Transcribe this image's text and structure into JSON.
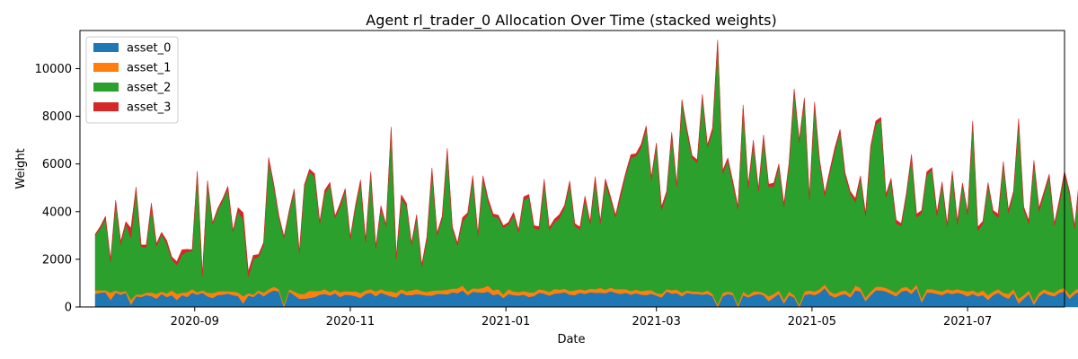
{
  "chart_data": {
    "type": "area",
    "stacked": true,
    "title": "Agent rl_trader_0 Allocation Over Time (stacked weights)",
    "xlabel": "Date",
    "ylabel": "Weight",
    "xlim": [
      "2020-07-18",
      "2021-08-08"
    ],
    "ylim": [
      0,
      11600
    ],
    "grid": false,
    "legend_position": "top-left",
    "x_ticks": [
      "2020-09",
      "2020-11",
      "2021-01",
      "2021-03",
      "2021-05",
      "2021-07"
    ],
    "x_tick_dates": [
      "2020-09-01",
      "2020-11-01",
      "2021-01-01",
      "2021-03-01",
      "2021-05-01",
      "2021-07-01"
    ],
    "y_ticks": [
      0,
      2000,
      4000,
      6000,
      8000,
      10000
    ],
    "x_start": "2020-07-24",
    "x_step_days": 2,
    "series": [
      {
        "name": "asset_0",
        "color": "#1f77b4",
        "values": [
          550,
          600,
          620,
          300,
          600,
          520,
          600,
          100,
          450,
          420,
          500,
          460,
          350,
          550,
          420,
          500,
          300,
          500,
          420,
          600,
          520,
          600,
          450,
          380,
          500,
          520,
          560,
          500,
          460,
          150,
          480,
          420,
          600,
          450,
          600,
          700,
          650,
          0,
          650,
          500,
          350,
          350,
          380,
          420,
          520,
          550,
          480,
          580,
          420,
          520,
          500,
          460,
          380,
          550,
          600,
          450,
          600,
          520,
          450,
          400,
          600,
          500,
          500,
          550,
          520,
          480,
          480,
          550,
          550,
          530,
          620,
          580,
          700,
          500,
          640,
          620,
          600,
          650,
          500,
          550,
          380,
          550,
          500,
          480,
          520,
          420,
          460,
          600,
          560,
          480,
          560,
          580,
          620,
          520,
          500,
          600,
          550,
          620,
          600,
          600,
          580,
          660,
          600,
          550,
          600,
          520,
          580,
          520,
          500,
          560,
          480,
          400,
          650,
          560,
          580,
          450,
          600,
          550,
          550,
          520,
          550,
          450,
          0,
          450,
          550,
          500,
          0,
          500,
          400,
          500,
          550,
          500,
          250,
          400,
          550,
          150,
          500,
          400,
          0,
          500,
          550,
          500,
          600,
          800,
          500,
          400,
          500,
          550,
          400,
          700,
          650,
          250,
          500,
          700,
          700,
          650,
          550,
          450,
          650,
          700,
          550,
          800,
          200,
          600,
          600,
          550,
          500,
          600,
          550,
          600,
          550,
          450,
          550,
          450,
          500,
          300,
          500,
          600,
          450,
          350,
          600,
          150,
          350,
          550,
          100,
          450,
          600,
          500,
          450,
          600,
          650,
          350,
          550,
          650,
          600,
          500,
          550,
          500,
          550,
          450,
          500,
          650,
          700,
          450,
          500,
          600,
          550,
          600,
          550,
          600
        ]
      },
      {
        "name": "asset_1",
        "color": "#ff7f0e",
        "values": [
          150,
          100,
          80,
          300,
          100,
          100,
          80,
          200,
          80,
          100,
          100,
          150,
          200,
          100,
          150,
          200,
          250,
          100,
          200,
          150,
          100,
          100,
          150,
          200,
          150,
          150,
          100,
          150,
          150,
          300,
          100,
          100,
          100,
          150,
          150,
          150,
          100,
          100,
          100,
          150,
          200,
          200,
          300,
          250,
          150,
          200,
          150,
          150,
          200,
          150,
          150,
          200,
          200,
          150,
          150,
          200,
          150,
          150,
          200,
          200,
          150,
          150,
          200,
          200,
          150,
          150,
          200,
          150,
          150,
          200,
          150,
          200,
          200,
          150,
          150,
          150,
          200,
          250,
          200,
          200,
          150,
          200,
          150,
          150,
          150,
          200,
          150,
          150,
          150,
          150,
          200,
          150,
          150,
          150,
          200,
          150,
          150,
          150,
          150,
          200,
          150,
          150,
          150,
          200,
          150,
          150,
          150,
          150,
          200,
          150,
          100,
          150,
          100,
          150,
          150,
          150,
          100,
          100,
          100,
          100,
          150,
          100,
          100,
          150,
          100,
          100,
          100,
          150,
          100,
          150,
          100,
          100,
          200,
          150,
          150,
          150,
          150,
          100,
          100,
          150,
          150,
          150,
          150,
          150,
          150,
          150,
          150,
          150,
          150,
          200,
          150,
          150,
          150,
          150,
          150,
          150,
          150,
          150,
          150,
          150,
          150,
          150,
          150,
          150,
          150,
          150,
          150,
          150,
          150,
          150,
          150,
          200,
          150,
          150,
          200,
          200,
          150,
          150,
          150,
          200,
          150,
          200,
          150,
          150,
          150,
          150,
          150,
          150,
          150,
          150,
          150,
          150,
          150,
          150,
          150,
          150,
          150,
          150,
          150,
          150,
          150,
          150,
          150,
          150,
          150,
          150,
          150,
          150,
          150,
          150
        ]
      },
      {
        "name": "asset_2",
        "color": "#2ca02c",
        "values": [
          2300,
          2600,
          3000,
          1300,
          3700,
          2000,
          2800,
          2600,
          4400,
          2000,
          1900,
          3600,
          2000,
          2400,
          2100,
          1300,
          1200,
          1600,
          1700,
          1600,
          5000,
          600,
          4600,
          2900,
          3400,
          3800,
          4300,
          2500,
          3400,
          3200,
          700,
          1500,
          1400,
          2000,
          5400,
          4200,
          3000,
          2800,
          3200,
          4200,
          1700,
          4500,
          5000,
          4800,
          2800,
          4000,
          4500,
          3000,
          3600,
          4200,
          2200,
          3500,
          4600,
          2000,
          4800,
          1800,
          3400,
          2700,
          6800,
          1400,
          3800,
          3600,
          1900,
          3000,
          1000,
          2200,
          5000,
          2300,
          3000,
          5800,
          2500,
          1800,
          2700,
          3200,
          4600,
          2200,
          4600,
          3500,
          3100,
          3000,
          2800,
          2700,
          3200,
          2500,
          3800,
          4000,
          2700,
          2500,
          4500,
          2600,
          2800,
          3000,
          3400,
          4500,
          2700,
          2500,
          3800,
          2700,
          4600,
          2700,
          4500,
          3700,
          3000,
          3900,
          4800,
          5600,
          5600,
          6000,
          6800,
          4600,
          6200,
          3500,
          4000,
          6500,
          4300,
          8000,
          6600,
          5600,
          5400,
          8200,
          6000,
          6800,
          11000,
          5000,
          5500,
          4500,
          4000,
          7700,
          4500,
          6200,
          4200,
          6500,
          4600,
          4500,
          5200,
          3900,
          5300,
          8500,
          6800,
          8000,
          3800,
          7800,
          5300,
          3700,
          5000,
          6000,
          6700,
          4800,
          4200,
          3500,
          4600,
          3400,
          6000,
          6800,
          7000,
          3800,
          4600,
          2900,
          2600,
          3800,
          5600,
          2800,
          3600,
          4800,
          5000,
          3100,
          4500,
          2600,
          4900,
          2700,
          4400,
          3200,
          7000,
          2600,
          2800,
          4600,
          3300,
          3000,
          5400,
          3400,
          4000,
          7400,
          3600,
          2800,
          5800,
          3400,
          4000,
          4800,
          2800,
          3600,
          4800,
          4200,
          2600,
          4700,
          3600,
          3700,
          3800,
          3900,
          4900,
          3400,
          3200,
          3600
        ]
      },
      {
        "name": "asset_3",
        "color": "#d62728",
        "values": [
          50,
          80,
          100,
          80,
          80,
          120,
          100,
          400,
          100,
          80,
          100,
          150,
          100,
          80,
          120,
          100,
          150,
          200,
          100,
          50,
          80,
          50,
          100,
          50,
          80,
          80,
          100,
          50,
          150,
          300,
          200,
          150,
          100,
          100,
          120,
          100,
          80,
          50,
          80,
          100,
          50,
          80,
          100,
          120,
          100,
          150,
          100,
          80,
          120,
          100,
          80,
          100,
          150,
          100,
          120,
          80,
          100,
          80,
          100,
          100,
          150,
          100,
          80,
          120,
          100,
          100,
          150,
          100,
          100,
          120,
          100,
          100,
          150,
          100,
          120,
          100,
          100,
          150,
          100,
          100,
          80,
          100,
          120,
          100,
          150,
          100,
          100,
          120,
          150,
          100,
          120,
          150,
          100,
          120,
          100,
          100,
          150,
          100,
          120,
          100,
          150,
          120,
          100,
          150,
          100,
          120,
          100,
          150,
          100,
          120,
          100,
          150,
          100,
          120,
          100,
          100,
          150,
          100,
          120,
          100,
          100,
          150,
          100,
          120,
          100,
          150,
          100,
          120,
          100,
          150,
          100,
          120,
          100,
          150,
          100,
          120,
          100,
          150,
          100,
          120,
          100,
          150,
          100,
          120,
          100,
          150,
          100,
          120,
          100,
          150,
          100,
          120,
          100,
          150,
          100,
          120,
          100,
          150,
          100,
          120,
          100,
          150,
          100,
          120,
          100,
          150,
          100,
          120,
          100,
          150,
          100,
          120,
          100,
          150,
          100,
          120,
          100,
          150,
          100,
          120,
          100,
          150,
          100,
          120,
          100,
          150,
          100,
          120,
          100,
          150,
          100,
          120,
          100,
          150,
          100,
          120,
          100,
          150,
          100,
          120,
          100,
          150,
          100,
          120,
          100,
          150,
          100,
          120,
          300,
          150,
          100
        ]
      }
    ]
  }
}
